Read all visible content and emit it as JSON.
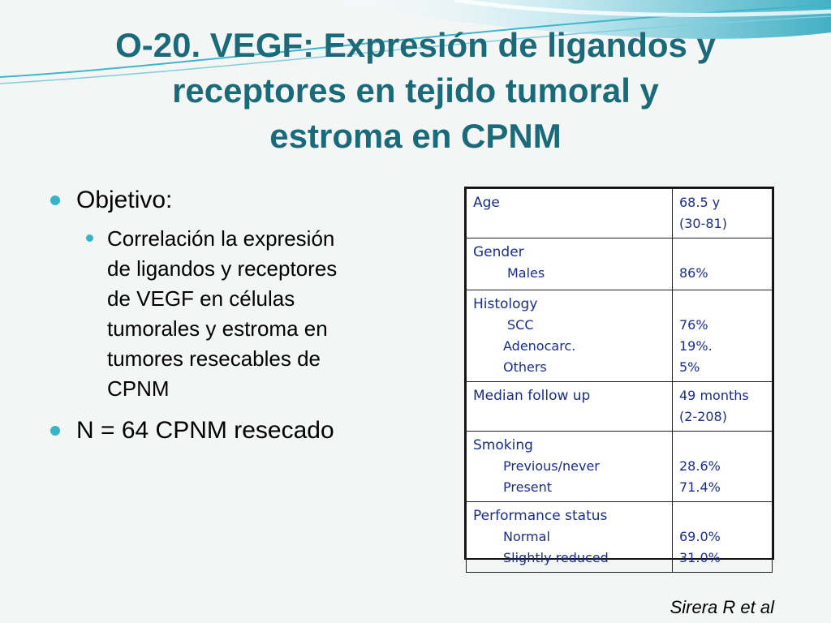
{
  "slide": {
    "title_lines": [
      "O-20. VEGF: Expresión de ligandos y",
      "receptores en tejido tumoral y",
      "estroma en CPNM"
    ],
    "bullets": {
      "level1_a": "Objetivo:",
      "level2_lines": [
        "Correlación la expresión",
        "de ligandos y receptores",
        "de VEGF en células",
        "tumorales y estroma en",
        "tumores resecables de",
        "CPNM"
      ],
      "level1_b": "N = 64 CPNM resecado"
    },
    "citation": "Sirera R et al",
    "colors": {
      "title": "#1a6a79",
      "bullet": "#37b4c7",
      "table_text": "#1c2c8c",
      "swoosh": "#3fb6c9"
    }
  },
  "table": {
    "rows": [
      {
        "header": "Age",
        "subs": [],
        "values": [
          "68.5 y",
          "(30-81)"
        ]
      },
      {
        "header": "Gender",
        "subs": [
          "Males"
        ],
        "values": [
          "",
          "86%"
        ]
      },
      {
        "header": "Histology",
        "subs": [
          "SCC",
          "Adenocarc.",
          "Others"
        ],
        "values": [
          "",
          "76%",
          "19%.",
          "5%"
        ]
      },
      {
        "header": "Median follow up",
        "subs": [],
        "values": [
          "49 months",
          "(2-208)"
        ]
      },
      {
        "header": "Smoking",
        "subs": [
          "Previous/never",
          "Present"
        ],
        "values": [
          "",
          "28.6%",
          "71.4%"
        ]
      },
      {
        "header": "Performance status",
        "subs": [
          "Normal",
          "Slightly reduced"
        ],
        "values": [
          "",
          "69.0%",
          "31.0%"
        ]
      }
    ]
  }
}
